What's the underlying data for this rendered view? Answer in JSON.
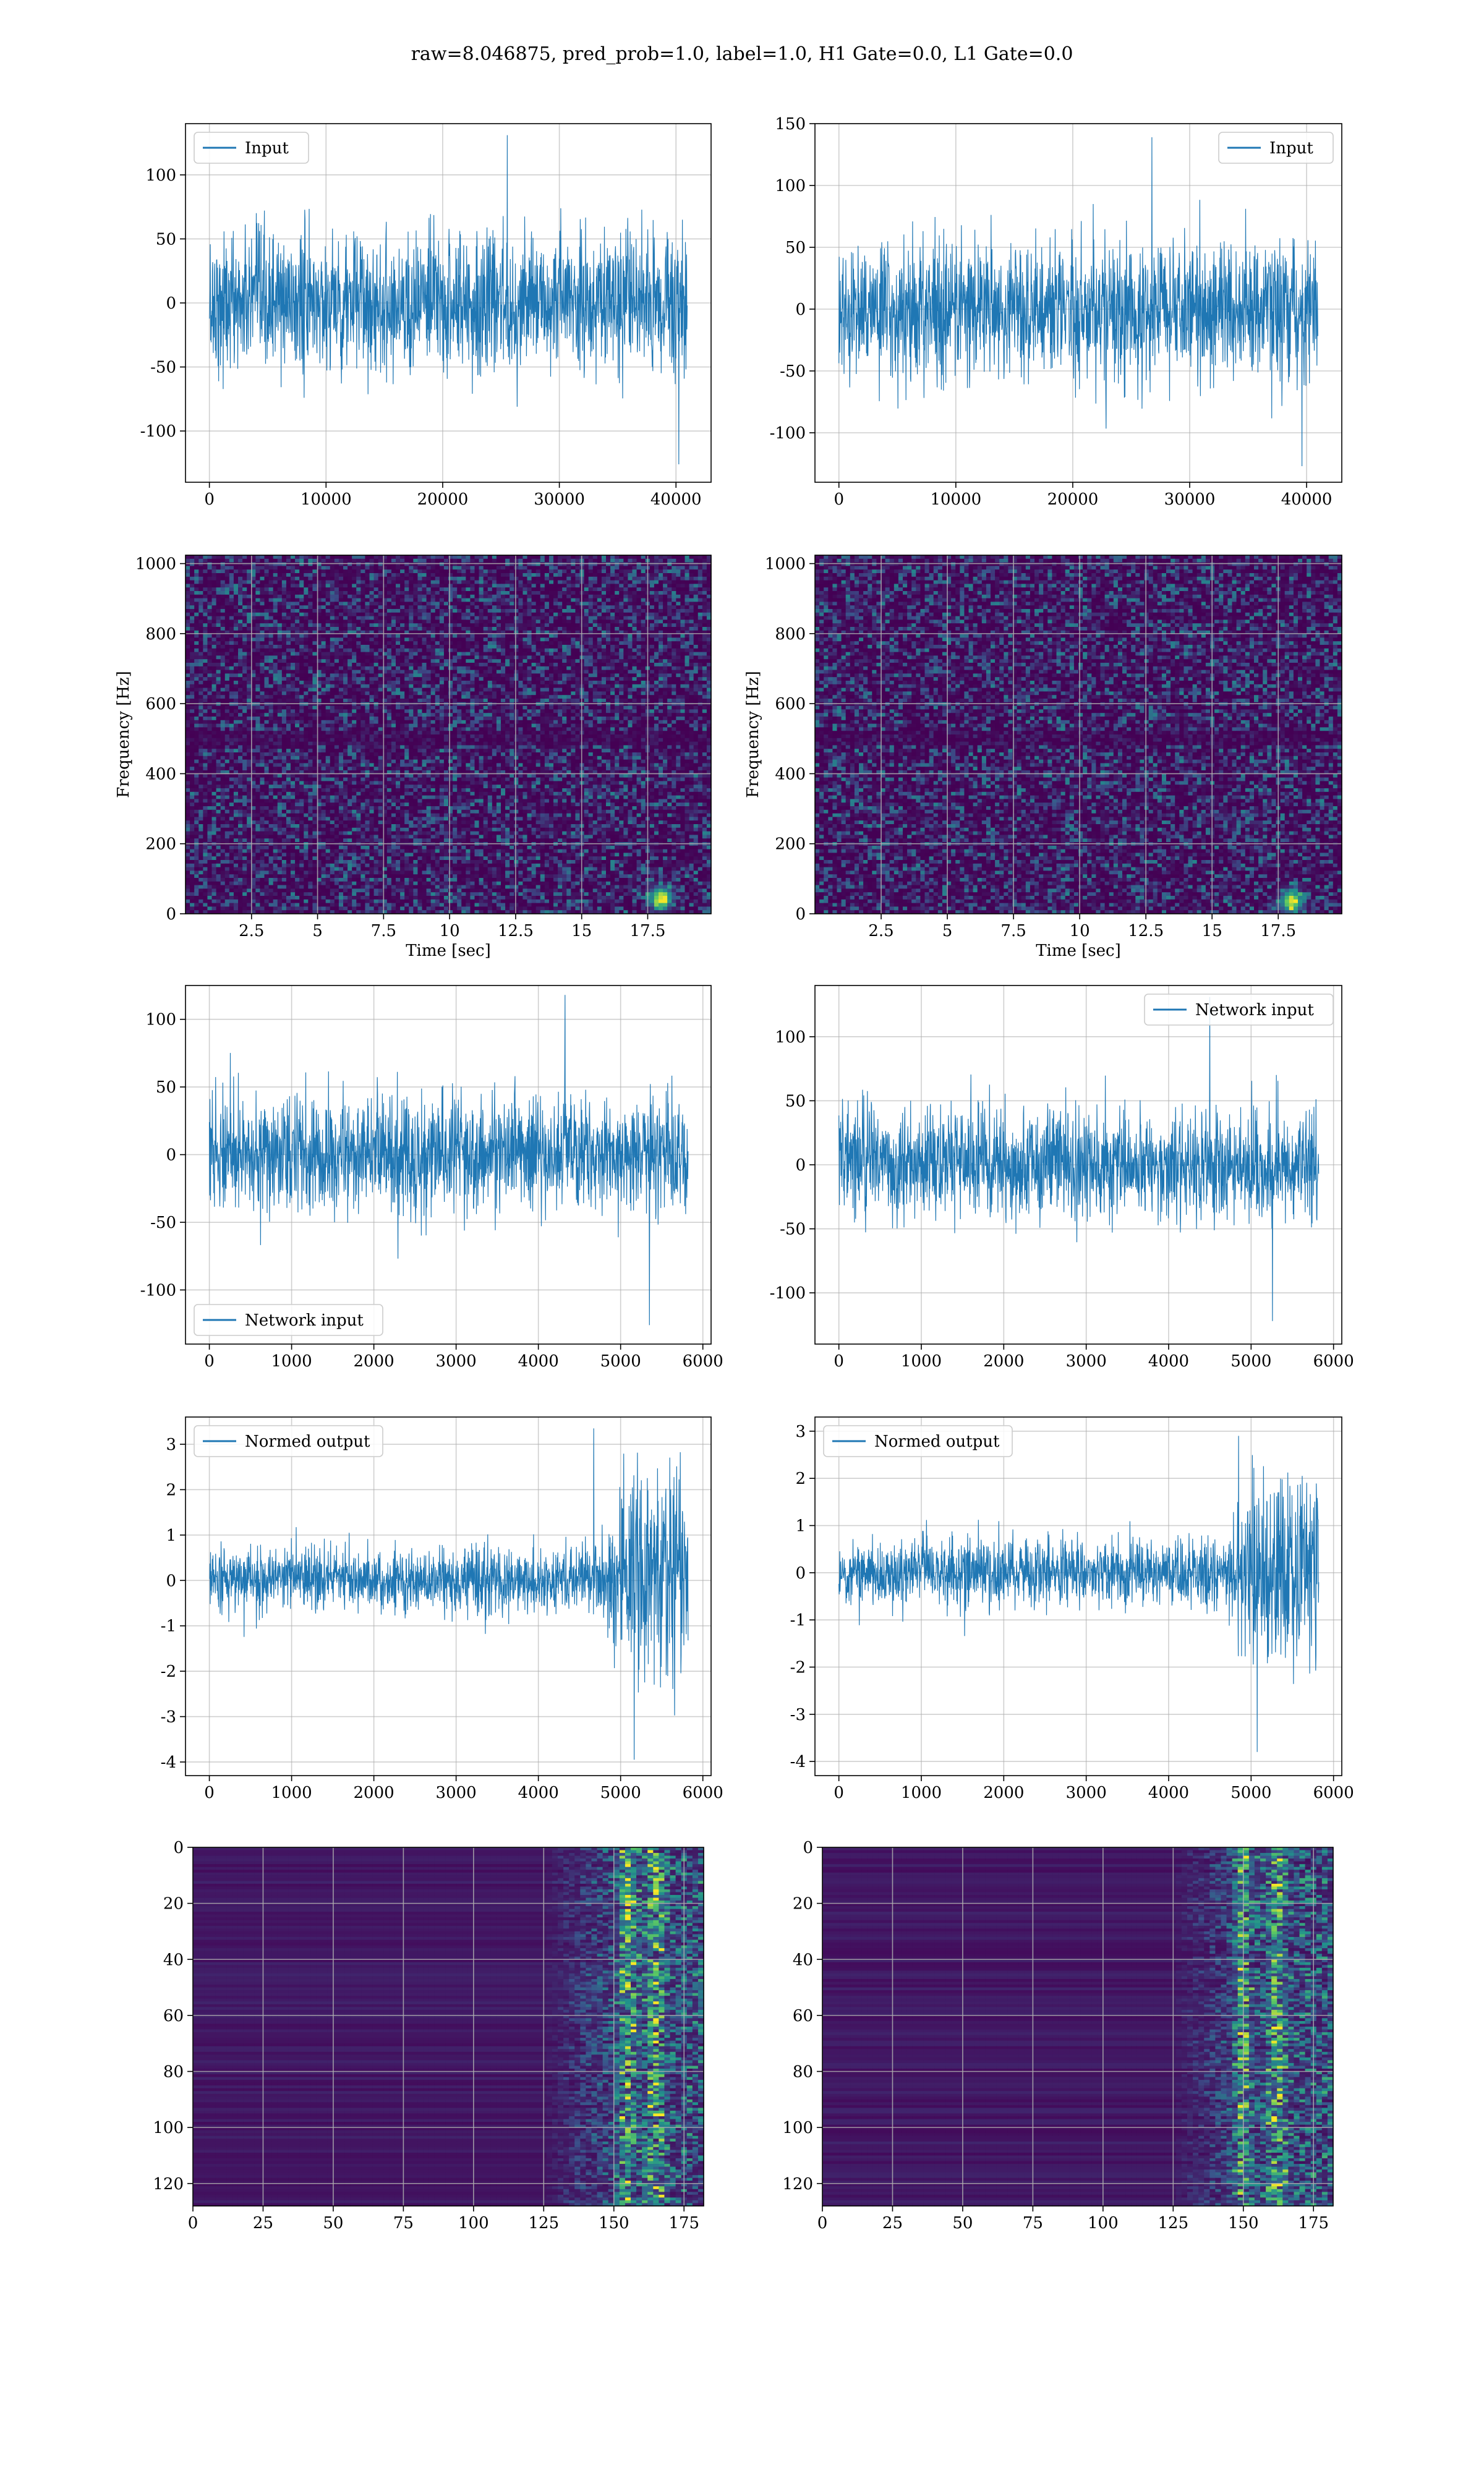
{
  "suptitle": "raw=8.046875, pred_prob=1.0, label=1.0, H1 Gate=0.0, L1 Gate=0.0",
  "colors": {
    "line": "#1f77b4",
    "grid": "#b0b0b0",
    "viridis_dark": "#440154",
    "viridis_mid": "#21918c",
    "viridis_bright": "#fde725"
  },
  "chart_data": [
    {
      "id": "h1-input",
      "type": "line",
      "title": "",
      "xlabel": "",
      "ylabel": "",
      "legend": "Input",
      "legend_loc": "upper-left",
      "xlim": [
        -2048,
        43008
      ],
      "ylim": [
        -140,
        140
      ],
      "xticks": [
        0,
        10000,
        20000,
        30000,
        40000
      ],
      "yticks": [
        -100,
        -50,
        0,
        50,
        100
      ],
      "x": [
        0,
        40960
      ],
      "envelope": {
        "typical_abs": 70,
        "peak_max": 131,
        "peak_min": -126
      },
      "series": [
        {
          "name": "Input"
        }
      ]
    },
    {
      "id": "l1-input",
      "type": "line",
      "title": "",
      "xlabel": "",
      "ylabel": "",
      "legend": "Input",
      "legend_loc": "upper-right",
      "xlim": [
        -2048,
        43008
      ],
      "ylim": [
        -140,
        150
      ],
      "xticks": [
        0,
        10000,
        20000,
        30000,
        40000
      ],
      "yticks": [
        -100,
        -50,
        0,
        50,
        100,
        150
      ],
      "x": [
        0,
        40960
      ],
      "envelope": {
        "typical_abs": 70,
        "peak_max": 139,
        "peak_min": -127
      },
      "series": [
        {
          "name": "Input"
        }
      ]
    },
    {
      "id": "h1-spectrogram",
      "type": "heatmap",
      "xlabel": "Time [sec]",
      "ylabel": "Frequency [Hz]",
      "xlim": [
        0,
        19.9
      ],
      "ylim": [
        0,
        1024
      ],
      "xticks": [
        2.5,
        5.0,
        7.5,
        10.0,
        12.5,
        15.0,
        17.5
      ],
      "yticks": [
        0,
        200,
        400,
        600,
        800,
        1000
      ],
      "colormap": "viridis",
      "hot_spot": {
        "t": 18.0,
        "f": 45
      },
      "dark_band_hz": [
        480,
        520
      ]
    },
    {
      "id": "l1-spectrogram",
      "type": "heatmap",
      "xlabel": "Time [sec]",
      "ylabel": "Frequency [Hz]",
      "xlim": [
        0,
        19.9
      ],
      "ylim": [
        0,
        1024
      ],
      "xticks": [
        2.5,
        5.0,
        7.5,
        10.0,
        12.5,
        15.0,
        17.5
      ],
      "yticks": [
        0,
        200,
        400,
        600,
        800,
        1000
      ],
      "colormap": "viridis",
      "hot_spot": {
        "t": 18.0,
        "f": 35
      },
      "dark_band_hz": [
        480,
        520
      ]
    },
    {
      "id": "h1-network-input",
      "type": "line",
      "legend": "Network input",
      "legend_loc": "lower-left",
      "xlim": [
        -290,
        6100
      ],
      "ylim": [
        -140,
        125
      ],
      "xticks": [
        0,
        1000,
        2000,
        3000,
        4000,
        5000,
        6000
      ],
      "yticks": [
        -100,
        -50,
        0,
        50,
        100
      ],
      "x": [
        0,
        5820
      ],
      "envelope": {
        "typical_abs": 55,
        "peak_max": 118,
        "peak_min": -126
      },
      "series": [
        {
          "name": "Network input"
        }
      ]
    },
    {
      "id": "l1-network-input",
      "type": "line",
      "legend": "Network input",
      "legend_loc": "upper-right",
      "xlim": [
        -290,
        6100
      ],
      "ylim": [
        -140,
        140
      ],
      "xticks": [
        0,
        1000,
        2000,
        3000,
        4000,
        5000,
        6000
      ],
      "yticks": [
        -100,
        -50,
        0,
        50,
        100
      ],
      "x": [
        0,
        5820
      ],
      "envelope": {
        "typical_abs": 55,
        "peak_max": 131,
        "peak_min": -122
      },
      "series": [
        {
          "name": "Network input"
        }
      ]
    },
    {
      "id": "h1-normed-output",
      "type": "line",
      "legend": "Normed output",
      "legend_loc": "upper-left",
      "xlim": [
        -290,
        6100
      ],
      "ylim": [
        -4.3,
        3.6
      ],
      "xticks": [
        0,
        1000,
        2000,
        3000,
        4000,
        5000,
        6000
      ],
      "yticks": [
        -4,
        -3,
        -2,
        -1,
        0,
        1,
        2,
        3
      ],
      "x": [
        0,
        5820
      ],
      "envelope": {
        "typical_abs": 0.9,
        "burst_start": 4700,
        "burst_abs": 2.8,
        "peak_max": 3.35,
        "peak_min": -3.95
      },
      "series": [
        {
          "name": "Normed output"
        }
      ]
    },
    {
      "id": "l1-normed-output",
      "type": "line",
      "legend": "Normed output",
      "legend_loc": "upper-left",
      "xlim": [
        -290,
        6100
      ],
      "ylim": [
        -4.3,
        3.3
      ],
      "xticks": [
        0,
        1000,
        2000,
        3000,
        4000,
        5000,
        6000
      ],
      "yticks": [
        -4,
        -3,
        -2,
        -1,
        0,
        1,
        2,
        3
      ],
      "x": [
        0,
        5820
      ],
      "envelope": {
        "typical_abs": 0.9,
        "burst_start": 4700,
        "burst_abs": 2.6,
        "peak_max": 2.9,
        "peak_min": -3.8
      },
      "series": [
        {
          "name": "Normed output"
        }
      ]
    },
    {
      "id": "h1-feature-map",
      "type": "heatmap",
      "xlim": [
        0,
        182
      ],
      "ylim": [
        128,
        0
      ],
      "xticks": [
        0,
        25,
        50,
        75,
        100,
        125,
        150,
        175
      ],
      "yticks": [
        0,
        20,
        40,
        60,
        80,
        100,
        120
      ],
      "colormap": "viridis",
      "active_from": 125,
      "hot_cols": [
        155,
        165
      ]
    },
    {
      "id": "l1-feature-map",
      "type": "heatmap",
      "xlim": [
        0,
        182
      ],
      "ylim": [
        128,
        0
      ],
      "xticks": [
        0,
        25,
        50,
        75,
        100,
        125,
        150,
        175
      ],
      "yticks": [
        0,
        20,
        40,
        60,
        80,
        100,
        120
      ],
      "colormap": "viridis",
      "active_from": 125,
      "hot_cols": [
        150,
        162
      ]
    }
  ]
}
